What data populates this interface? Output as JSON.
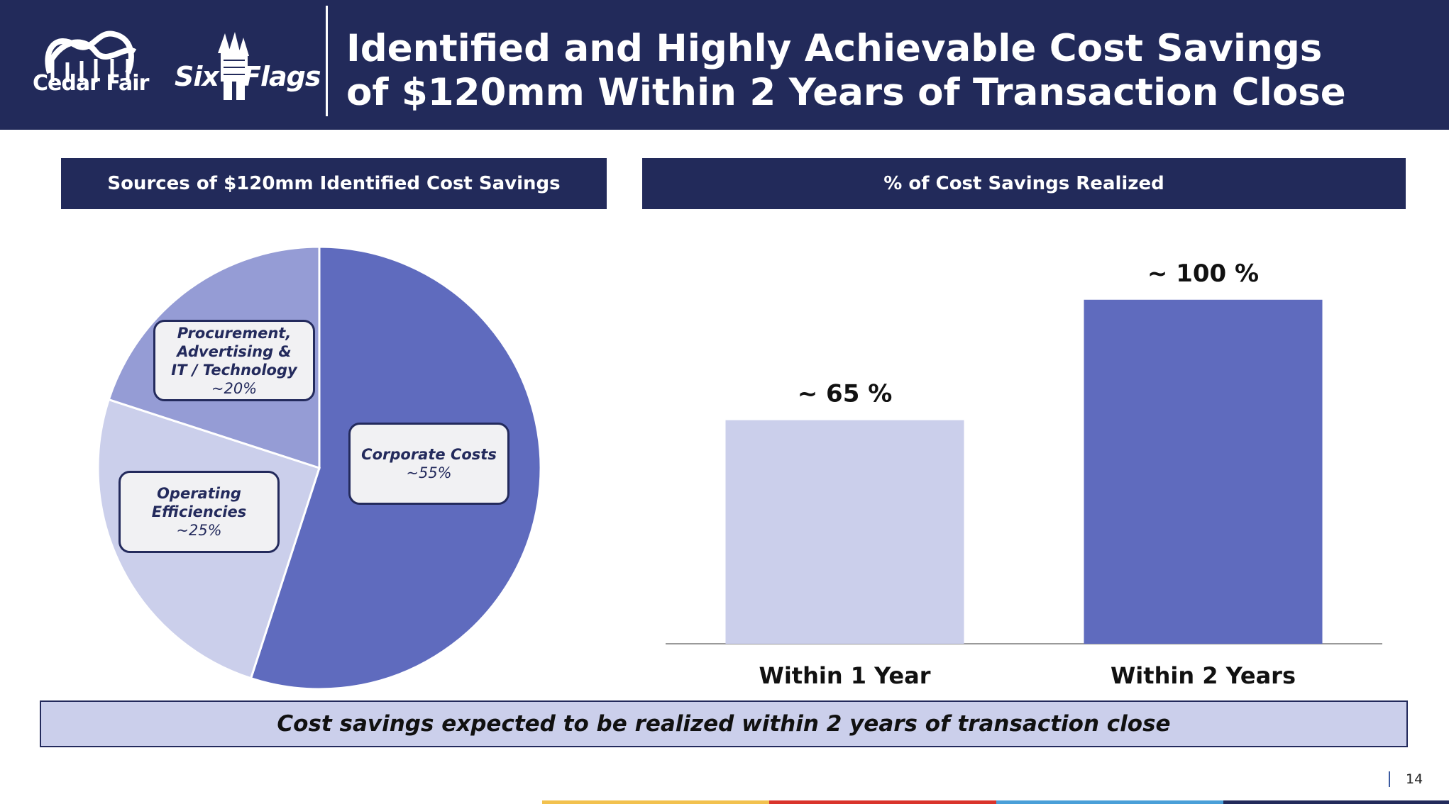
{
  "header": {
    "title": "Identified and Highly Achievable Cost Savings\nof $120mm Within 2 Years of Transaction Close",
    "logos": {
      "cedar_fair": "Cedar Fair",
      "six_flags_a": "Six",
      "six_flags_b": "Flags"
    }
  },
  "left_panel": {
    "title": "Sources of $120mm Identified Cost Savings"
  },
  "right_panel": {
    "title": "% of Cost Savings Realized"
  },
  "chart_data": [
    {
      "type": "pie",
      "title": "Sources of $120mm Identified Cost Savings",
      "slices": [
        {
          "label": "Corporate Costs",
          "value_label": "~55%",
          "value": 55,
          "color": "#5f6bbe"
        },
        {
          "label": "Operating\nEfficiencies",
          "value_label": "~25%",
          "value": 25,
          "color": "#cbcfeb"
        },
        {
          "label": "Procurement,\nAdvertising &\nIT / Technology",
          "value_label": "~20%",
          "value": 20,
          "color": "#959cd5"
        }
      ]
    },
    {
      "type": "bar",
      "title": "% of Cost Savings Realized",
      "categories": [
        "Within 1 Year",
        "Within 2 Years"
      ],
      "values": [
        65,
        100
      ],
      "data_labels": [
        "~ 65 %",
        "~ 100 %"
      ],
      "colors": [
        "#cbcfeb",
        "#5f6bbe"
      ],
      "ylim": [
        0,
        115
      ]
    }
  ],
  "footnote": "Cost savings expected to be realized within 2 years of transaction close",
  "page_number": "14",
  "colors": {
    "navy": "#222a5a",
    "accent_blue": "#5f6bbe",
    "light_blue": "#cbcfeb",
    "mid_blue": "#959cd5",
    "stripes": [
      "#ffffff",
      "#f2c14e",
      "#d9342b",
      "#4a9fd8",
      "#222a5a"
    ]
  }
}
